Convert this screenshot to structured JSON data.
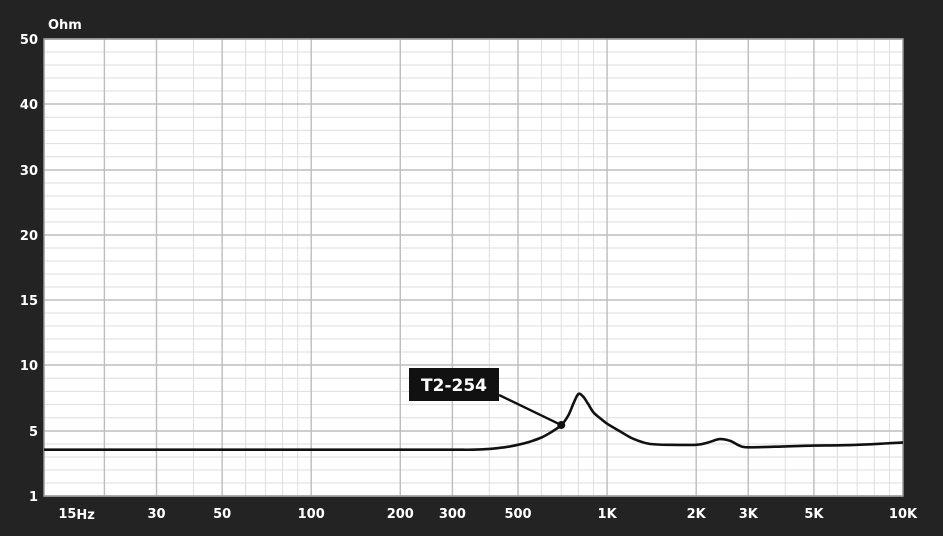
{
  "chart_data": {
    "type": "line",
    "title": "",
    "ylabel": "Ohm",
    "xlabel": "",
    "x_scale": "log",
    "y_scale": "custom-nonuniform",
    "xlim": [
      12.5,
      10000
    ],
    "ylim": [
      1,
      50
    ],
    "grid": true,
    "x_tick_labels": [
      {
        "value": 15,
        "label": "15"
      },
      {
        "value": 30,
        "label": "30"
      },
      {
        "value": 50,
        "label": "50"
      },
      {
        "value": 100,
        "label": "100"
      },
      {
        "value": 200,
        "label": "200"
      },
      {
        "value": 300,
        "label": "300"
      },
      {
        "value": 500,
        "label": "500"
      },
      {
        "value": 1000,
        "label": "1K"
      },
      {
        "value": 2000,
        "label": "2K"
      },
      {
        "value": 3000,
        "label": "3K"
      },
      {
        "value": 5000,
        "label": "5K"
      },
      {
        "value": 10000,
        "label": "10K"
      }
    ],
    "x_unit_label": "Hz",
    "y_tick_labels": [
      {
        "value": 1,
        "label": "1"
      },
      {
        "value": 5,
        "label": "5"
      },
      {
        "value": 10,
        "label": "10"
      },
      {
        "value": 15,
        "label": "15"
      },
      {
        "value": 20,
        "label": "20"
      },
      {
        "value": 30,
        "label": "30"
      },
      {
        "value": 40,
        "label": "40"
      },
      {
        "value": 50,
        "label": "50"
      }
    ],
    "series": [
      {
        "name": "T2-254",
        "color": "#000000",
        "points": [
          [
            12.5,
            3.85
          ],
          [
            50,
            3.85
          ],
          [
            100,
            3.85
          ],
          [
            200,
            3.85
          ],
          [
            300,
            3.85
          ],
          [
            350,
            3.85
          ],
          [
            400,
            3.9
          ],
          [
            450,
            4.0
          ],
          [
            500,
            4.15
          ],
          [
            550,
            4.35
          ],
          [
            600,
            4.6
          ],
          [
            650,
            4.95
          ],
          [
            700,
            5.45
          ],
          [
            740,
            6.2
          ],
          [
            770,
            7.1
          ],
          [
            800,
            7.8
          ],
          [
            830,
            7.6
          ],
          [
            860,
            7.1
          ],
          [
            900,
            6.4
          ],
          [
            950,
            5.95
          ],
          [
            1000,
            5.55
          ],
          [
            1100,
            5.0
          ],
          [
            1200,
            4.6
          ],
          [
            1300,
            4.35
          ],
          [
            1400,
            4.2
          ],
          [
            1600,
            4.15
          ],
          [
            2000,
            4.15
          ],
          [
            2200,
            4.3
          ],
          [
            2400,
            4.5
          ],
          [
            2600,
            4.4
          ],
          [
            2800,
            4.1
          ],
          [
            3000,
            4.0
          ],
          [
            4000,
            4.05
          ],
          [
            5000,
            4.1
          ],
          [
            7000,
            4.15
          ],
          [
            10000,
            4.3
          ]
        ]
      }
    ],
    "annotations": [
      {
        "text": "T2-254",
        "points_to": [
          700,
          5.45
        ]
      }
    ]
  },
  "colors": {
    "background": "#232323",
    "plot_background": "#ffffff",
    "grid_major": "#bdbdbd",
    "grid_minor": "#dedede",
    "line": "#111111",
    "label_box": "#111111"
  }
}
